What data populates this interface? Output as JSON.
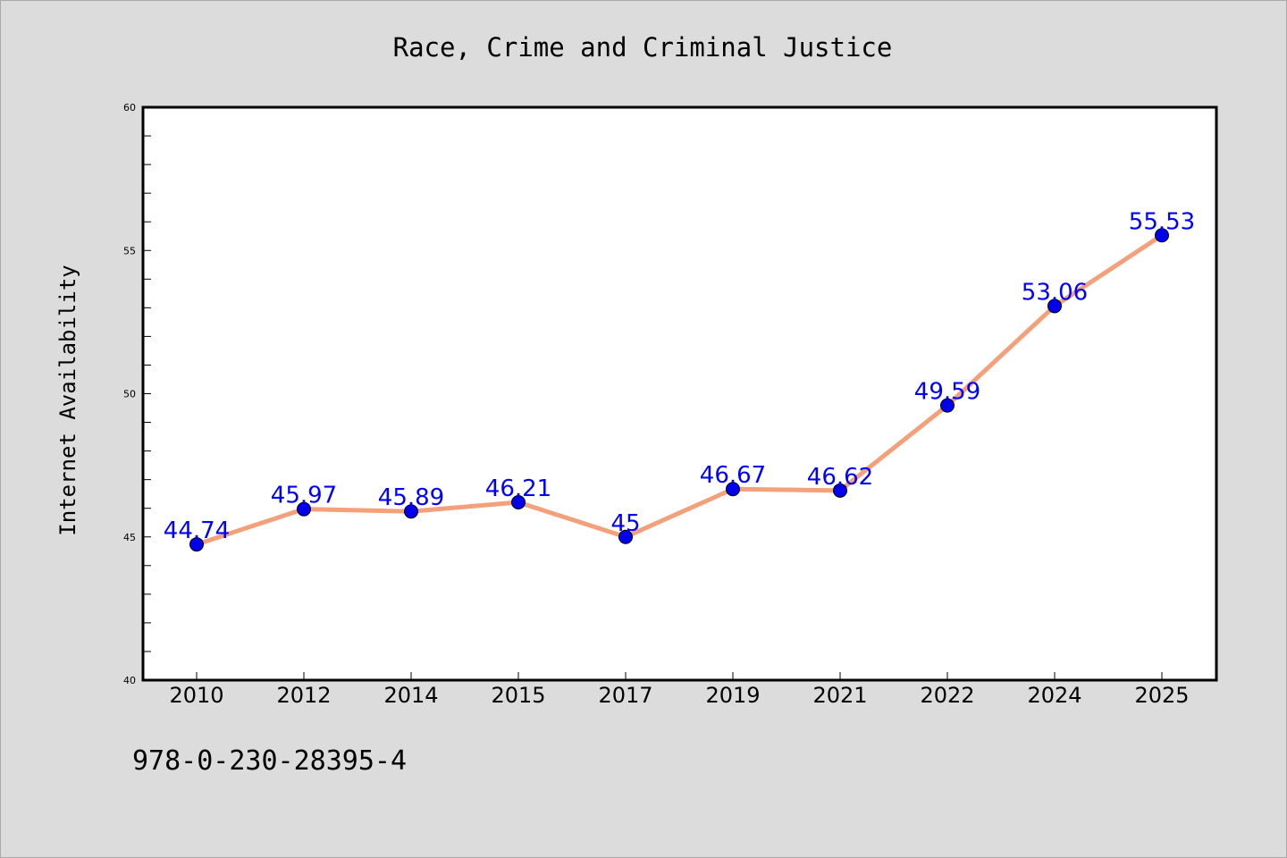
{
  "chart_data": {
    "type": "line",
    "title": "Race, Crime and Criminal Justice",
    "xlabel": "",
    "ylabel": "Internet Availability",
    "categories": [
      "2010",
      "2012",
      "2014",
      "2015",
      "2017",
      "2019",
      "2021",
      "2022",
      "2024",
      "2025"
    ],
    "series": [
      {
        "values": [
          44.74,
          45.97,
          45.89,
          46.21,
          45,
          46.67,
          46.62,
          49.59,
          53.06,
          55.53
        ],
        "line_color": "#f4a07a",
        "marker_color": "#0000ee"
      }
    ],
    "data_labels": [
      "44.74",
      "45.97",
      "45.89",
      "46.21",
      "45",
      "46.67",
      "46.62",
      "49.59",
      "53.06",
      "55.53"
    ],
    "data_label_color": "#0000ff",
    "ylim": [
      40,
      60
    ],
    "yticks": [
      "40",
      "45",
      "50",
      "55",
      "60"
    ],
    "grid": false,
    "legend": "none"
  },
  "footer": {
    "isbn": "978-0-230-28395-4"
  },
  "colors": {
    "background": "#dcdcdc",
    "plot_area": "#ffffff",
    "axis": "#000000"
  }
}
